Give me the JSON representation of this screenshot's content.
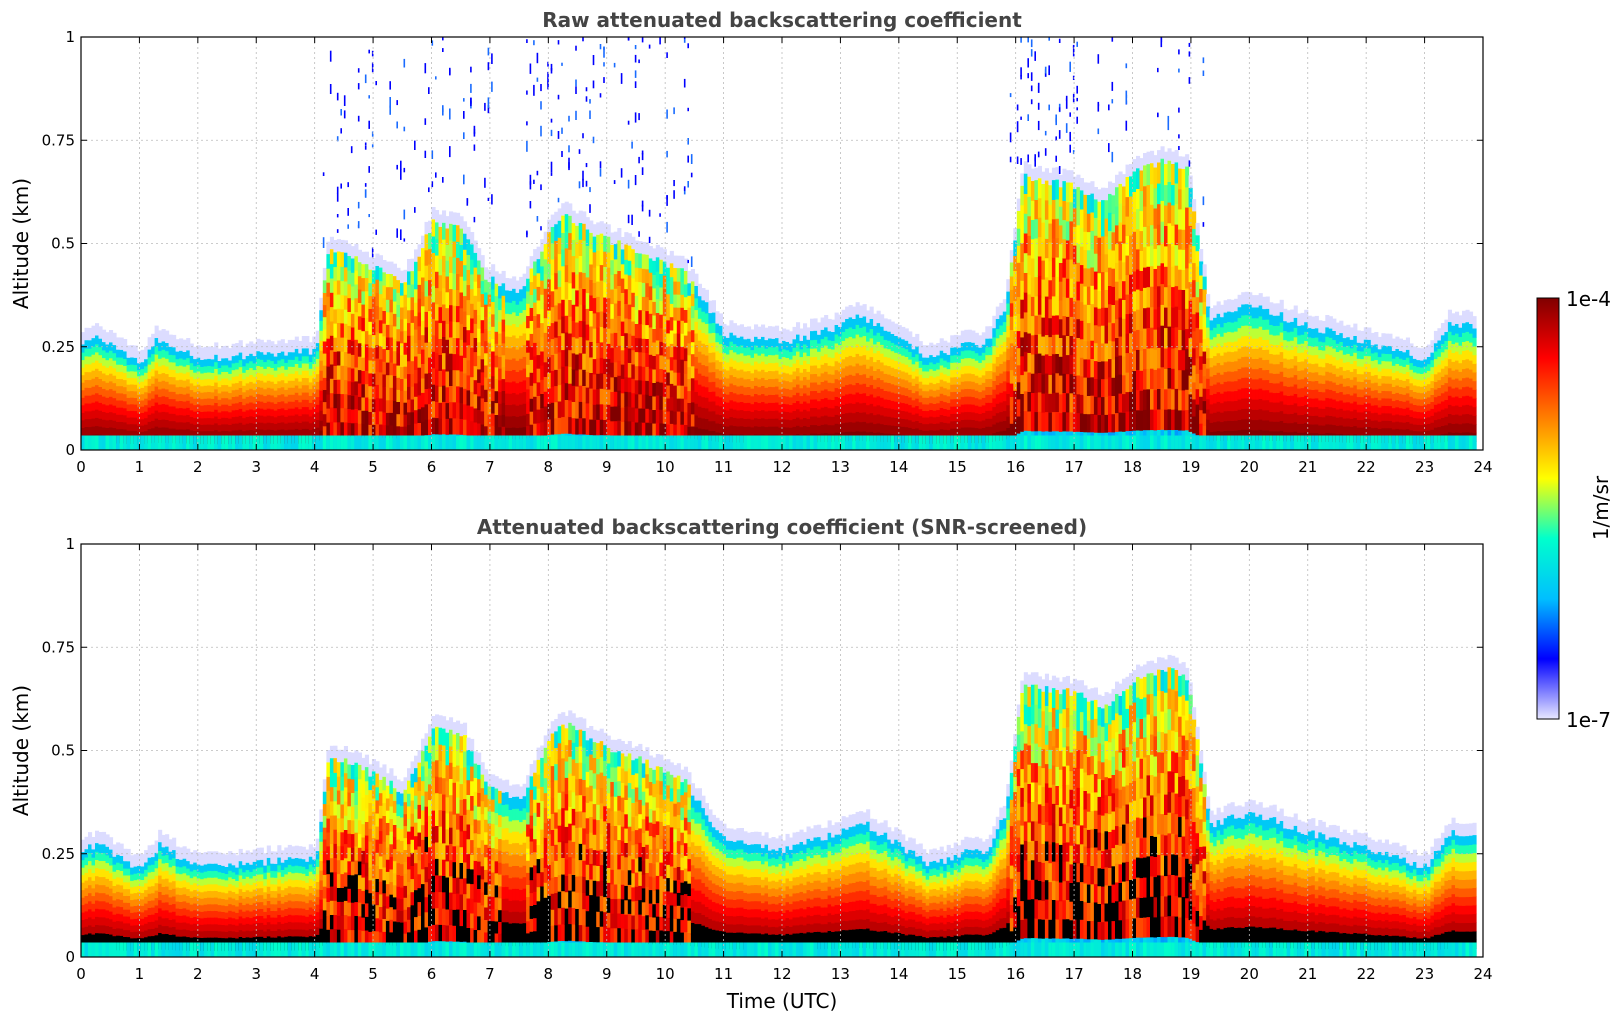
{
  "chart_data": [
    {
      "type": "heatmap",
      "title": "Raw attenuated backscattering coefficient",
      "xlabel": "",
      "ylabel": "Altitude (km)",
      "xlim": [
        0,
        24
      ],
      "ylim": [
        0,
        1
      ],
      "xticks": [
        "0",
        "1",
        "2",
        "3",
        "4",
        "5",
        "6",
        "7",
        "8",
        "9",
        "10",
        "11",
        "12",
        "13",
        "14",
        "15",
        "16",
        "17",
        "18",
        "19",
        "20",
        "21",
        "22",
        "23",
        "24"
      ],
      "yticks": [
        "0",
        "0.25",
        "0.5",
        "0.75",
        "1"
      ],
      "grid": true,
      "screened": false,
      "layer_top_km": {
        "t": [
          0,
          0.3,
          1,
          1.3,
          2,
          3,
          4,
          4.2,
          4.6,
          5,
          5.5,
          6,
          6.5,
          6.9,
          7.5,
          7.9,
          8.2,
          8.8,
          9.5,
          10.3,
          11,
          12,
          13,
          13.3,
          14,
          14.5,
          15,
          15.5,
          15.8,
          16.1,
          16.5,
          17,
          17.5,
          18,
          18.5,
          18.9,
          19.3,
          20,
          21,
          22,
          23,
          23.4,
          23.8
        ],
        "v": [
          0.26,
          0.27,
          0.21,
          0.27,
          0.22,
          0.23,
          0.24,
          0.48,
          0.47,
          0.44,
          0.4,
          0.55,
          0.54,
          0.42,
          0.38,
          0.5,
          0.57,
          0.52,
          0.48,
          0.43,
          0.28,
          0.26,
          0.3,
          0.33,
          0.27,
          0.22,
          0.25,
          0.26,
          0.35,
          0.66,
          0.65,
          0.64,
          0.6,
          0.67,
          0.7,
          0.68,
          0.32,
          0.35,
          0.3,
          0.26,
          0.22,
          0.3,
          0.3
        ]
      }
    },
    {
      "type": "heatmap",
      "title": "Attenuated backscattering coefficient (SNR-screened)",
      "xlabel": "Time (UTC)",
      "ylabel": "Altitude (km)",
      "xlim": [
        0,
        24
      ],
      "ylim": [
        0,
        1
      ],
      "xticks": [
        "0",
        "1",
        "2",
        "3",
        "4",
        "5",
        "6",
        "7",
        "8",
        "9",
        "10",
        "11",
        "12",
        "13",
        "14",
        "15",
        "16",
        "17",
        "18",
        "19",
        "20",
        "21",
        "22",
        "23",
        "24"
      ],
      "yticks": [
        "0",
        "0.25",
        "0.5",
        "0.75",
        "1"
      ],
      "grid": true,
      "screened": true,
      "layer_top_km": {
        "t": [
          0,
          0.3,
          1,
          1.3,
          2,
          3,
          4,
          4.2,
          4.6,
          5,
          5.5,
          6,
          6.5,
          6.9,
          7.5,
          7.9,
          8.2,
          8.8,
          9.5,
          10.3,
          11,
          12,
          13,
          13.3,
          14,
          14.5,
          15,
          15.5,
          15.8,
          16.1,
          16.5,
          17,
          17.5,
          18,
          18.5,
          18.9,
          19.3,
          20,
          21,
          22,
          23,
          23.4,
          23.8
        ],
        "v": [
          0.26,
          0.27,
          0.21,
          0.27,
          0.22,
          0.23,
          0.24,
          0.48,
          0.47,
          0.44,
          0.4,
          0.55,
          0.54,
          0.42,
          0.38,
          0.5,
          0.57,
          0.52,
          0.48,
          0.43,
          0.28,
          0.26,
          0.3,
          0.33,
          0.27,
          0.22,
          0.25,
          0.26,
          0.35,
          0.66,
          0.65,
          0.64,
          0.6,
          0.67,
          0.7,
          0.68,
          0.32,
          0.35,
          0.3,
          0.26,
          0.22,
          0.3,
          0.3
        ]
      }
    }
  ],
  "colorbar": {
    "label": "1/m/sr",
    "max_label": "1e-4",
    "min_label": "1e-7",
    "colormap": "jet",
    "stops": [
      "#e8e8ff",
      "#0000ff",
      "#00bfff",
      "#00ffcc",
      "#ffff00",
      "#ff8000",
      "#ff0000",
      "#800000"
    ]
  }
}
